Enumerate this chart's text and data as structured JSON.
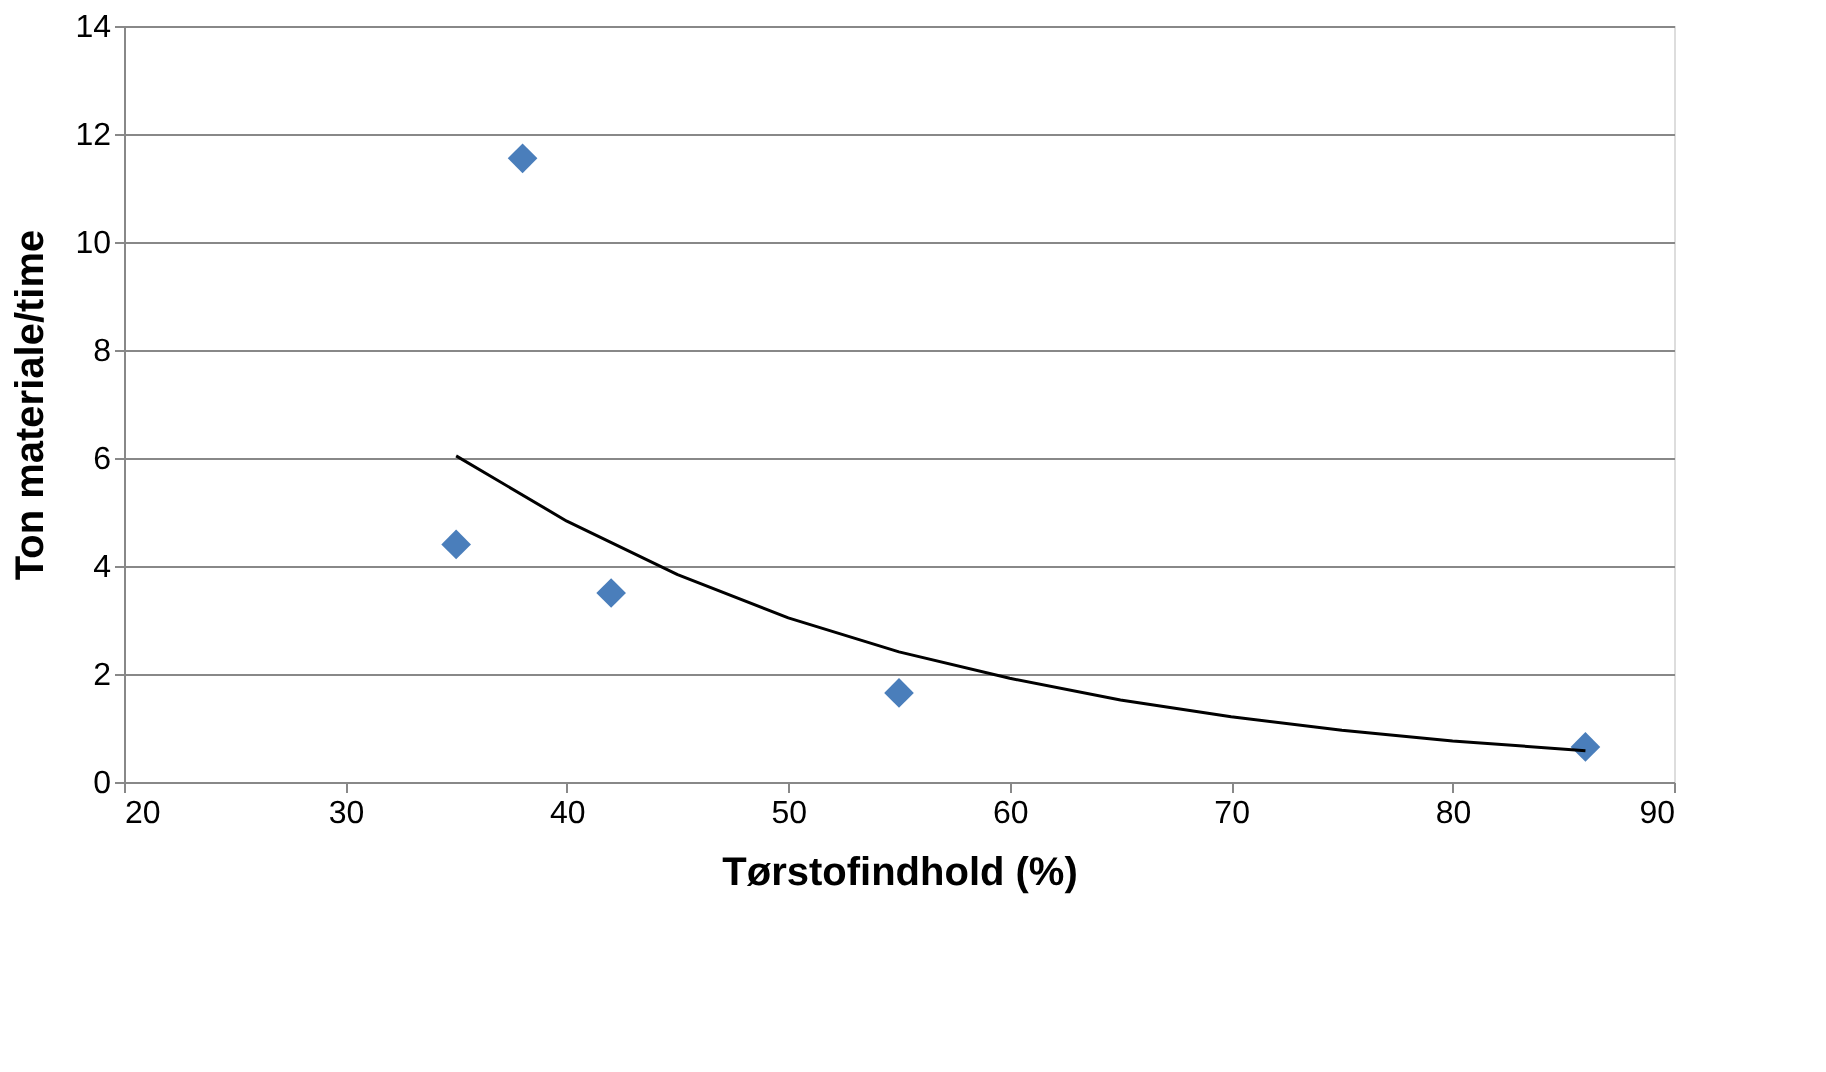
{
  "chart_data": {
    "type": "scatter",
    "xlabel": "Tørstofindhold (%)",
    "ylabel": "Ton materiale/time",
    "xlim": [
      20,
      90
    ],
    "xticks": [
      20,
      30,
      40,
      50,
      60,
      70,
      80,
      90
    ],
    "ylim": [
      0,
      14
    ],
    "yticks": [
      0,
      2,
      4,
      6,
      8,
      10,
      12,
      14
    ],
    "grid": "y",
    "legend": false,
    "series": [
      {
        "marker": "diamond",
        "color": "#4a7ebb",
        "x": [
          35,
          38,
          42,
          55,
          86
        ],
        "values": [
          4.4,
          11.55,
          3.5,
          1.65,
          0.65
        ]
      },
      {
        "type": "line",
        "marker": "none",
        "line_style": "solid",
        "color": "#000000",
        "x": [
          35,
          40,
          45,
          50,
          55,
          60,
          65,
          70,
          75,
          80,
          86
        ],
        "values": [
          6.04,
          4.83,
          3.84,
          3.04,
          2.41,
          1.92,
          1.52,
          1.21,
          0.96,
          0.76,
          0.58
        ]
      }
    ]
  }
}
